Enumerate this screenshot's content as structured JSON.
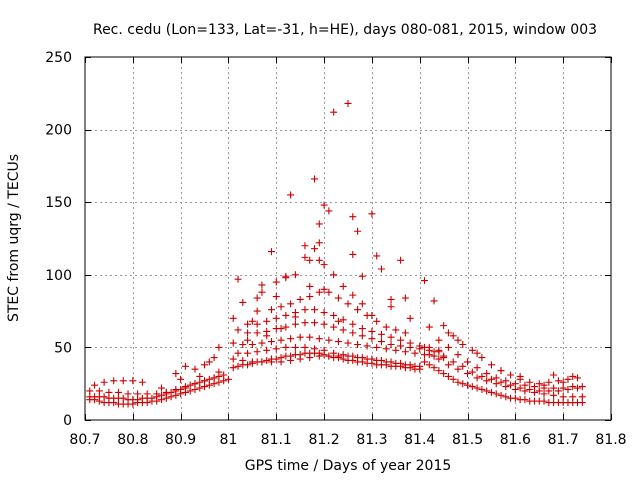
{
  "chart_data": {
    "type": "scatter",
    "title": "Rec. cedu (Lon=133, Lat=-31, h=HE), days 080-081, 2015, window 003",
    "xlabel": "GPS time / Days of year 2015",
    "ylabel": "STEC from uqrg / TECUs",
    "xlim": [
      80.7,
      81.8
    ],
    "ylim": [
      0,
      250
    ],
    "xticks": [
      80.7,
      80.8,
      80.9,
      81.0,
      81.1,
      81.2,
      81.3,
      81.4,
      81.5,
      81.6,
      81.7,
      81.8
    ],
    "xtick_labels": [
      "80.7",
      "80.8",
      "80.9",
      "81",
      "81.1",
      "81.2",
      "81.3",
      "81.4",
      "81.5",
      "81.6",
      "81.7",
      "81.8"
    ],
    "yticks": [
      0,
      50,
      100,
      150,
      200,
      250
    ],
    "ytick_labels": [
      "0",
      "50",
      "100",
      "150",
      "200",
      "250"
    ],
    "grid": true,
    "marker": "+",
    "marker_color": "#cc0000",
    "series": [
      {
        "name": "STEC",
        "x": [
          80.71,
          80.72,
          80.73,
          80.74,
          80.75,
          80.76,
          80.77,
          80.78,
          80.79,
          80.8,
          80.81,
          80.82,
          80.83,
          80.84,
          80.85,
          80.86,
          80.87,
          80.88,
          80.89,
          80.9,
          80.91,
          80.92,
          80.93,
          80.94,
          80.95,
          80.96,
          80.97,
          80.98,
          80.99,
          81.0,
          80.71,
          80.72,
          80.73,
          80.74,
          80.75,
          80.76,
          80.77,
          80.78,
          80.79,
          80.8,
          80.81,
          80.82,
          80.83,
          80.84,
          80.85,
          80.86,
          80.87,
          80.88,
          80.89,
          80.9,
          80.91,
          80.92,
          80.93,
          80.94,
          80.95,
          80.96,
          80.97,
          80.98,
          80.71,
          80.73,
          80.75,
          80.77,
          80.79,
          80.81,
          80.83,
          80.85,
          80.87,
          80.89,
          80.91,
          80.93,
          80.95,
          80.97,
          80.99,
          80.72,
          80.74,
          80.76,
          80.78,
          80.8,
          80.82,
          80.86,
          80.9,
          80.94,
          80.98,
          80.89,
          80.91,
          80.93,
          80.95,
          80.96,
          80.97,
          80.98,
          81.01,
          81.02,
          81.03,
          81.04,
          81.05,
          81.06,
          81.07,
          81.08,
          81.09,
          81.1,
          81.11,
          81.12,
          81.13,
          81.14,
          81.15,
          81.16,
          81.17,
          81.18,
          81.19,
          81.2,
          81.21,
          81.22,
          81.23,
          81.24,
          81.25,
          81.26,
          81.27,
          81.28,
          81.29,
          81.3,
          81.31,
          81.32,
          81.33,
          81.34,
          81.35,
          81.36,
          81.37,
          81.38,
          81.39,
          81.4,
          81.01,
          81.03,
          81.05,
          81.07,
          81.09,
          81.11,
          81.13,
          81.15,
          81.17,
          81.19,
          81.21,
          81.23,
          81.25,
          81.27,
          81.29,
          81.31,
          81.33,
          81.35,
          81.37,
          81.39,
          81.02,
          81.04,
          81.06,
          81.08,
          81.1,
          81.12,
          81.14,
          81.16,
          81.18,
          81.2,
          81.22,
          81.24,
          81.26,
          81.28,
          81.3,
          81.32,
          81.34,
          81.36,
          81.38,
          81.4,
          81.01,
          81.03,
          81.05,
          81.07,
          81.09,
          81.11,
          81.13,
          81.15,
          81.17,
          81.19,
          81.21,
          81.23,
          81.25,
          81.27,
          81.29,
          81.31,
          81.33,
          81.35,
          81.37,
          81.39,
          81.41,
          81.43,
          81.45,
          81.02,
          81.04,
          81.06,
          81.08,
          81.1,
          81.12,
          81.14,
          81.16,
          81.18,
          81.2,
          81.22,
          81.24,
          81.26,
          81.28,
          81.3,
          81.32,
          81.34,
          81.36,
          81.38,
          81.4,
          81.42,
          81.44,
          81.01,
          81.04,
          81.06,
          81.08,
          81.1,
          81.12,
          81.14,
          81.16,
          81.18,
          81.2,
          81.22,
          81.24,
          81.26,
          81.28,
          81.3,
          81.32,
          81.34,
          81.36,
          81.38,
          81.4,
          81.42,
          81.44,
          81.05,
          81.09,
          81.11,
          81.13,
          81.15,
          81.17,
          81.19,
          81.2,
          81.21,
          81.23,
          81.25,
          81.27,
          81.29,
          81.31,
          81.33,
          81.35,
          81.37,
          81.06,
          81.07,
          81.1,
          81.12,
          81.14,
          81.16,
          81.18,
          81.19,
          81.22,
          81.24,
          81.26,
          81.28,
          81.3,
          81.34,
          81.38,
          81.42,
          81.02,
          81.03,
          81.04,
          81.06,
          81.07,
          81.08,
          81.09,
          81.1,
          81.11,
          81.12,
          81.13,
          81.14,
          81.16,
          81.17,
          81.17,
          81.18,
          81.19,
          81.19,
          81.2,
          81.2,
          81.21,
          81.22,
          81.23,
          81.25,
          81.26,
          81.26,
          81.27,
          81.28,
          81.3,
          81.31,
          81.32,
          81.34,
          81.36,
          81.37,
          81.41,
          81.43,
          81.41,
          81.42,
          81.43,
          81.44,
          81.45,
          81.46,
          81.47,
          81.48,
          81.49,
          81.5,
          81.51,
          81.52,
          81.53,
          81.54,
          81.55,
          81.56,
          81.57,
          81.58,
          81.59,
          81.6,
          81.61,
          81.62,
          81.63,
          81.64,
          81.65,
          81.66,
          81.67,
          81.68,
          81.69,
          81.7,
          81.71,
          81.72,
          81.73,
          81.74,
          81.42,
          81.44,
          81.46,
          81.48,
          81.5,
          81.52,
          81.54,
          81.56,
          81.58,
          81.6,
          81.62,
          81.64,
          81.66,
          81.68,
          81.7,
          81.72,
          81.74,
          81.41,
          81.43,
          81.45,
          81.47,
          81.49,
          81.51,
          81.53,
          81.55,
          81.57,
          81.59,
          81.61,
          81.63,
          81.65,
          81.67,
          81.69,
          81.71,
          81.73,
          81.44,
          81.46,
          81.48,
          81.5,
          81.52,
          81.54,
          81.56,
          81.58,
          81.6,
          81.62,
          81.64,
          81.66,
          81.68,
          81.7,
          81.72,
          81.74,
          81.46,
          81.48,
          81.51,
          81.53,
          81.55,
          81.57,
          81.59,
          81.61,
          81.63,
          81.65,
          81.67,
          81.69,
          81.71,
          81.73,
          81.45,
          81.47,
          81.49,
          81.52,
          81.57,
          81.61,
          81.66,
          81.68,
          81.7,
          81.72
        ],
        "y": [
          14,
          14,
          13,
          12,
          12,
          12,
          11,
          11,
          11,
          11,
          12,
          12,
          12,
          13,
          13,
          14,
          15,
          16,
          17,
          18,
          19,
          20,
          21,
          22,
          23,
          24,
          25,
          26,
          27,
          28,
          16,
          16,
          16,
          16,
          15,
          15,
          15,
          15,
          14,
          14,
          14,
          15,
          15,
          15,
          16,
          17,
          18,
          19,
          20,
          21,
          22,
          24,
          25,
          26,
          27,
          28,
          29,
          30,
          20,
          20,
          19,
          19,
          18,
          18,
          18,
          18,
          19,
          21,
          23,
          25,
          27,
          29,
          31,
          24,
          26,
          27,
          27,
          27,
          26,
          22,
          28,
          30,
          33,
          32,
          37,
          35,
          38,
          40,
          43,
          50,
          36,
          37,
          38,
          38,
          39,
          40,
          40,
          41,
          42,
          42,
          43,
          44,
          44,
          45,
          45,
          46,
          46,
          46,
          46,
          45,
          44,
          43,
          43,
          42,
          41,
          41,
          40,
          40,
          39,
          39,
          38,
          38,
          38,
          37,
          37,
          37,
          36,
          36,
          35,
          35,
          42,
          41,
          40,
          40,
          40,
          40,
          41,
          42,
          43,
          44,
          44,
          44,
          44,
          43,
          42,
          41,
          40,
          39,
          38,
          37,
          46,
          46,
          47,
          48,
          49,
          50,
          50,
          50,
          49,
          48,
          46,
          45,
          44,
          43,
          42,
          41,
          40,
          39,
          38,
          37,
          53,
          52,
          52,
          53,
          54,
          55,
          56,
          57,
          57,
          56,
          55,
          54,
          53,
          52,
          51,
          50,
          49,
          48,
          47,
          46,
          45,
          44,
          43,
          62,
          60,
          60,
          61,
          63,
          64,
          66,
          67,
          67,
          66,
          64,
          62,
          60,
          58,
          56,
          54,
          52,
          51,
          50,
          49,
          48,
          47,
          70,
          66,
          66,
          68,
          70,
          72,
          74,
          76,
          76,
          74,
          72,
          69,
          66,
          63,
          61,
          59,
          57,
          55,
          53,
          51,
          50,
          48,
          68,
          76,
          78,
          80,
          83,
          85,
          88,
          90,
          88,
          84,
          80,
          76,
          72,
          68,
          64,
          62,
          60,
          84,
          88,
          95,
          98,
          100,
          112,
          118,
          110,
          100,
          92,
          86,
          80,
          72,
          78,
          70,
          64,
          97,
          81,
          55,
          75,
          93,
          58,
          116,
          85,
          63,
          99,
          155,
          71,
          120,
          92,
          110,
          166,
          135,
          122,
          148,
          107,
          144,
          212,
          68,
          218,
          140,
          114,
          130,
          99,
          142,
          113,
          104,
          83,
          110,
          84,
          96,
          82,
          40,
          38,
          36,
          34,
          32,
          30,
          28,
          26,
          25,
          24,
          23,
          22,
          21,
          20,
          19,
          18,
          17,
          16,
          15,
          15,
          14,
          14,
          13,
          13,
          13,
          13,
          12,
          12,
          12,
          12,
          12,
          12,
          12,
          12,
          45,
          42,
          38,
          35,
          32,
          29,
          27,
          25,
          23,
          21,
          20,
          19,
          18,
          17,
          16,
          16,
          16,
          50,
          47,
          44,
          40,
          37,
          33,
          30,
          28,
          26,
          24,
          22,
          21,
          20,
          20,
          20,
          21,
          22,
          55,
          50,
          45,
          40,
          36,
          32,
          29,
          27,
          25,
          24,
          23,
          22,
          22,
          22,
          23,
          23,
          60,
          55,
          48,
          43,
          38,
          34,
          31,
          28,
          26,
          25,
          26,
          27,
          28,
          29,
          65,
          58,
          52,
          46,
          34,
          30,
          24,
          31,
          26,
          30
        ]
      }
    ]
  }
}
